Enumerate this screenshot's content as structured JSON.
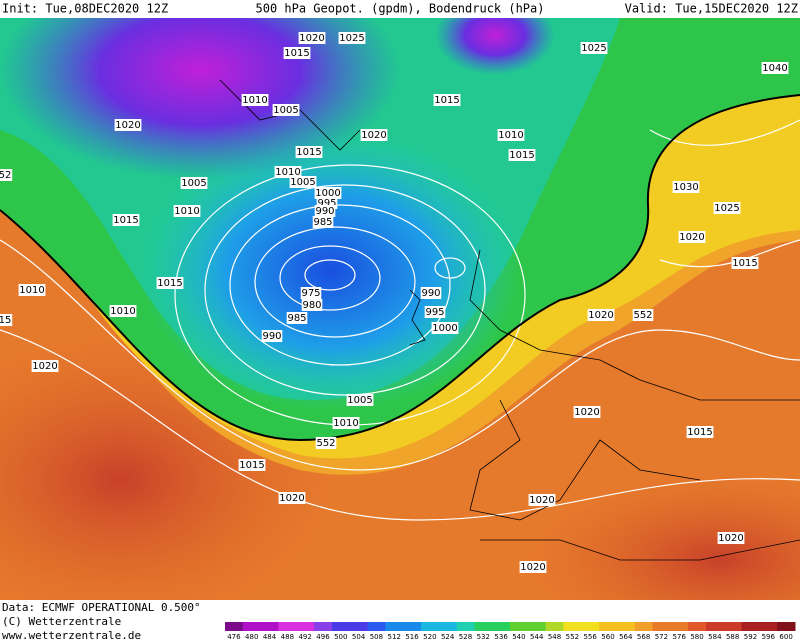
{
  "header": {
    "init": "Init: Tue,08DEC2020 12Z",
    "title": "500 hPa Geopot. (gpdm), Bodendruck (hPa)",
    "valid": "Valid: Tue,15DEC2020 12Z"
  },
  "footer": {
    "data": "Data: ECMWF OPERATIONAL 0.500°",
    "copyright": "(C) Wetterzentrale",
    "url": "www.wetterzentrale.de"
  },
  "isobar_labels": [
    "1020",
    "1025",
    "1015",
    "1025",
    "1040",
    "1010",
    "1005",
    "1015",
    "1020",
    "1020",
    "1010",
    "1015",
    "1015",
    "1010",
    "1005",
    "1005",
    "1000",
    "995",
    "990",
    "985",
    "1010",
    "1015",
    "1030",
    "1025",
    "1020",
    "1015",
    "1015",
    "1010",
    "975",
    "980",
    "985",
    "990",
    "995",
    "1000",
    "1010",
    "1020",
    "552",
    "990",
    "1020",
    "1020",
    "1005",
    "1010",
    "552",
    "1015",
    "1015",
    "1020",
    "1020",
    "1020",
    "1020",
    "52",
    "15"
  ],
  "colorbar": {
    "labels": [
      476,
      480,
      484,
      488,
      492,
      496,
      500,
      504,
      508,
      512,
      516,
      520,
      524,
      528,
      532,
      536,
      540,
      544,
      548,
      552,
      556,
      560,
      564,
      568,
      572,
      576,
      580,
      584,
      588,
      592,
      596,
      600
    ]
  }
}
